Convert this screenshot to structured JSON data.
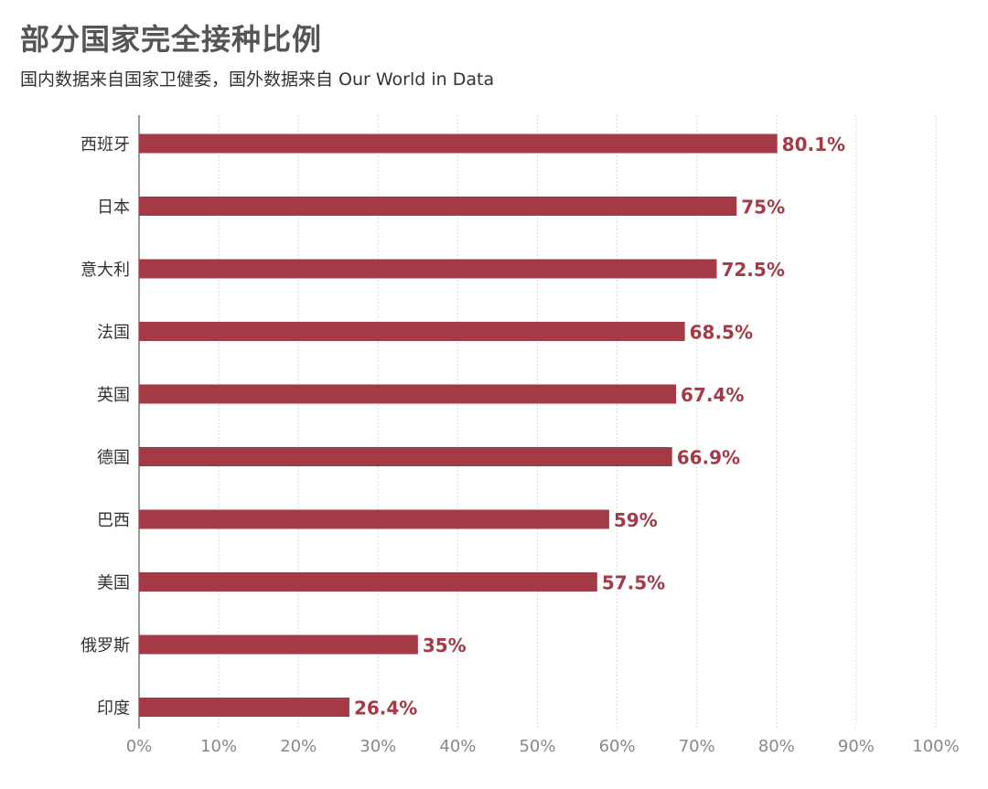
{
  "title": "部分国家完全接种比例",
  "subtitle": "国内数据来自国家卫健委，国外数据来自 Our World in Data",
  "colors": {
    "bar": "#a33a45",
    "label": "#a33a45",
    "grid": "#d9d9d9",
    "axis": "#777777",
    "tick_text": "#888888",
    "category_text": "#333333"
  },
  "chart_data": {
    "type": "bar",
    "orientation": "horizontal",
    "categories": [
      "西班牙",
      "日本",
      "意大利",
      "法国",
      "英国",
      "德国",
      "巴西",
      "美国",
      "俄罗斯",
      "印度"
    ],
    "values": [
      80.1,
      75,
      72.5,
      68.5,
      67.4,
      66.9,
      59,
      57.5,
      35,
      26.4
    ],
    "value_labels": [
      "80.1%",
      "75%",
      "72.5%",
      "68.5%",
      "67.4%",
      "66.9%",
      "59%",
      "57.5%",
      "35%",
      "26.4%"
    ],
    "xlim": [
      0,
      100
    ],
    "xticks": [
      0,
      10,
      20,
      30,
      40,
      50,
      60,
      70,
      80,
      90,
      100
    ],
    "xtick_labels": [
      "0%",
      "10%",
      "20%",
      "30%",
      "40%",
      "50%",
      "60%",
      "70%",
      "80%",
      "90%",
      "100%"
    ],
    "grid": "vertical",
    "legend": "none"
  }
}
